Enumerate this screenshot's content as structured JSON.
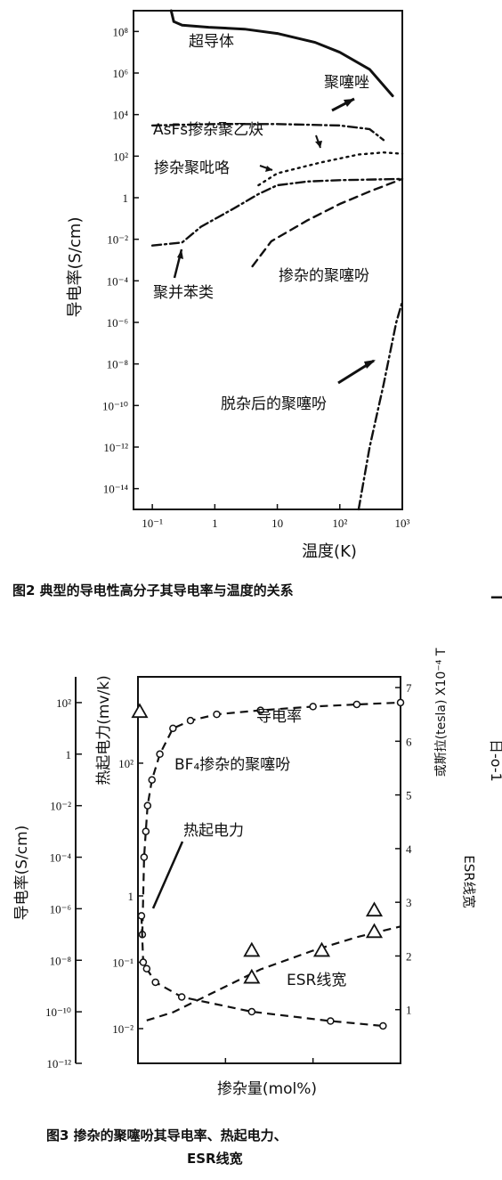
{
  "figure2": {
    "caption": "图2  典型的导电性高分子其导电率与温度的关系",
    "chart_data": {
      "type": "line",
      "scale": "log-log",
      "xlabel": "温度(K)",
      "ylabel": "导电率(S/cm)",
      "xlim": [
        0.05,
        1000
      ],
      "ylim": [
        1e-15,
        1000000000.0
      ],
      "x_ticks": [
        {
          "v": 0.1,
          "label": "10⁻¹"
        },
        {
          "v": 1,
          "label": "1"
        },
        {
          "v": 10,
          "label": "10"
        },
        {
          "v": 100,
          "label": "10²"
        },
        {
          "v": 1000,
          "label": "10³"
        }
      ],
      "y_ticks": [
        {
          "v": 100000000.0,
          "label": "10⁸"
        },
        {
          "v": 1000000.0,
          "label": "10⁶"
        },
        {
          "v": 10000.0,
          "label": "10⁴"
        },
        {
          "v": 100.0,
          "label": "10²"
        },
        {
          "v": 1,
          "label": "1"
        },
        {
          "v": 0.01,
          "label": "10⁻²"
        },
        {
          "v": 0.0001,
          "label": "10⁻⁴"
        },
        {
          "v": 1e-06,
          "label": "10⁻⁶"
        },
        {
          "v": 1e-08,
          "label": "10⁻⁸"
        },
        {
          "v": 1e-10,
          "label": "10⁻¹⁰"
        },
        {
          "v": 1e-12,
          "label": "10⁻¹²"
        },
        {
          "v": 1e-14,
          "label": "10⁻¹⁴"
        }
      ],
      "series": [
        {
          "name": "超导体",
          "style": "solid",
          "points": [
            [
              0.2,
              1000000000.0
            ],
            [
              0.22,
              300000000.0
            ],
            [
              0.3,
              200000000.0
            ],
            [
              0.8,
              160000000.0
            ],
            [
              3,
              130000000.0
            ],
            [
              10,
              80000000.0
            ]
          ]
        },
        {
          "name": "聚噻唑",
          "style": "solid",
          "points": [
            [
              10,
              80000000.0
            ],
            [
              40,
              30000000.0
            ],
            [
              100,
              10000000.0
            ],
            [
              300,
              1500000.0
            ],
            [
              700,
              80000.0
            ]
          ]
        },
        {
          "name": "AsFs掺杂聚乙炔",
          "style": "dash-dot",
          "points": [
            [
              0.1,
              3000.0
            ],
            [
              1,
              3500.0
            ],
            [
              10,
              3500.0
            ],
            [
              100,
              3000.0
            ],
            [
              300,
              2000.0
            ],
            [
              500,
              600
            ]
          ]
        },
        {
          "name": "掺杂聚吡咯",
          "style": "dotted",
          "points": [
            [
              5,
              4
            ],
            [
              10,
              15
            ],
            [
              50,
              50
            ],
            [
              200,
              120
            ],
            [
              500,
              150
            ],
            [
              1000,
              130
            ]
          ]
        },
        {
          "name": "聚并苯类",
          "style": "dash-dot",
          "points": [
            [
              0.1,
              0.005
            ],
            [
              0.3,
              0.007
            ],
            [
              0.6,
              0.04
            ],
            [
              2,
              0.3
            ],
            [
              5,
              1.5
            ],
            [
              10,
              4
            ],
            [
              30,
              6
            ],
            [
              100,
              7
            ],
            [
              1000,
              8
            ]
          ]
        },
        {
          "name": "掺杂的聚噻吩",
          "style": "dashed",
          "points": [
            [
              4,
              0.0005
            ],
            [
              8,
              0.008
            ],
            [
              30,
              0.08
            ],
            [
              100,
              0.5
            ],
            [
              300,
              2
            ],
            [
              1000,
              8
            ]
          ]
        },
        {
          "name": "脱杂后的聚噻吩",
          "style": "dash-dot",
          "points": [
            [
              200,
              1e-15
            ],
            [
              300,
              1e-12
            ],
            [
              500,
              1e-09
            ],
            [
              800,
              1e-06
            ],
            [
              1000,
              1e-05
            ]
          ]
        }
      ]
    }
  },
  "figure3": {
    "caption_line1": "图3  掺杂的聚噻吩其导电率、热起电力、",
    "caption_line2": "ESR线宽",
    "chart_data": {
      "type": "line",
      "xlabel": "掺杂量(mol%)",
      "xlim": [
        0,
        30
      ],
      "y_left_label": "导电率(S/cm)",
      "y_left_scale": "log",
      "y_left_lim": [
        1e-12,
        1000.0
      ],
      "y_left_ticks": [
        {
          "v": 100,
          "label": "10²"
        },
        {
          "v": 1,
          "label": "1"
        },
        {
          "v": 0.01,
          "label": "10⁻²"
        },
        {
          "v": 0.0001,
          "label": "10⁻⁴"
        },
        {
          "v": 1e-06,
          "label": "10⁻⁶"
        },
        {
          "v": 1e-08,
          "label": "10⁻⁸"
        },
        {
          "v": 1e-10,
          "label": "10⁻¹⁰"
        },
        {
          "v": 1e-12,
          "label": "10⁻¹²"
        }
      ],
      "y_mid_label": "热起电力(mv/k)",
      "y_mid_scale": "log",
      "y_mid_lim": [
        0.003,
        2000
      ],
      "y_mid_ticks": [
        {
          "v": 100,
          "label": "10²"
        },
        {
          "v": 1,
          "label": "1"
        },
        {
          "v": 0.1,
          "label": "10⁻¹"
        },
        {
          "v": 0.01,
          "label": "10⁻²"
        }
      ],
      "y_right_label": "ESR线宽",
      "y_right_label2": "或斯拉(tesla) X10⁻⁴ T",
      "y_right_lim": [
        0,
        7.2
      ],
      "y_right_ticks": [
        {
          "v": 1,
          "label": "1"
        },
        {
          "v": 2,
          "label": "2"
        },
        {
          "v": 3,
          "label": "3"
        },
        {
          "v": 4,
          "label": "4"
        },
        {
          "v": 5,
          "label": "5"
        },
        {
          "v": 6,
          "label": "6"
        },
        {
          "v": 7,
          "label": "7"
        }
      ],
      "series": [
        {
          "name": "导电率",
          "axis": "left",
          "marker": "circle",
          "style": "dashed",
          "points": [
            [
              0.5,
              1e-07
            ],
            [
              0.7,
              0.0001
            ],
            [
              0.9,
              0.001
            ],
            [
              1.1,
              0.01
            ],
            [
              1.6,
              0.1
            ],
            [
              2.5,
              1
            ],
            [
              4,
              10
            ],
            [
              6,
              20
            ],
            [
              9,
              35
            ],
            [
              14,
              50
            ],
            [
              20,
              70
            ],
            [
              25,
              85
            ],
            [
              30,
              100
            ]
          ]
        },
        {
          "name": "热起电力",
          "axis": "mid",
          "marker": "circle",
          "style": "dashed",
          "points": [
            [
              0.4,
              0.5
            ],
            [
              0.6,
              0.1
            ],
            [
              1,
              0.08
            ],
            [
              2,
              0.05
            ],
            [
              5,
              0.03
            ],
            [
              13,
              0.018
            ],
            [
              22,
              0.013
            ],
            [
              28,
              0.011
            ]
          ]
        },
        {
          "name": "ESR线宽",
          "axis": "right",
          "marker": "triangle",
          "style": "dashed",
          "points": [
            [
              1,
              0.8
            ],
            [
              4,
              0.95
            ],
            [
              9,
              1.35
            ],
            [
              14,
              1.75
            ],
            [
              20,
              2.1
            ],
            [
              25,
              2.35
            ],
            [
              30,
              2.55
            ]
          ]
        }
      ],
      "esr_extra_markers": [
        [
          0.2,
          6.55
        ],
        [
          13,
          2.1
        ],
        [
          13,
          1.6
        ],
        [
          21,
          2.1
        ],
        [
          27,
          2.45
        ],
        [
          27,
          2.85
        ]
      ]
    }
  },
  "margin_marks": {
    "right_mark": "▁",
    "fragment": "日-o-1"
  }
}
